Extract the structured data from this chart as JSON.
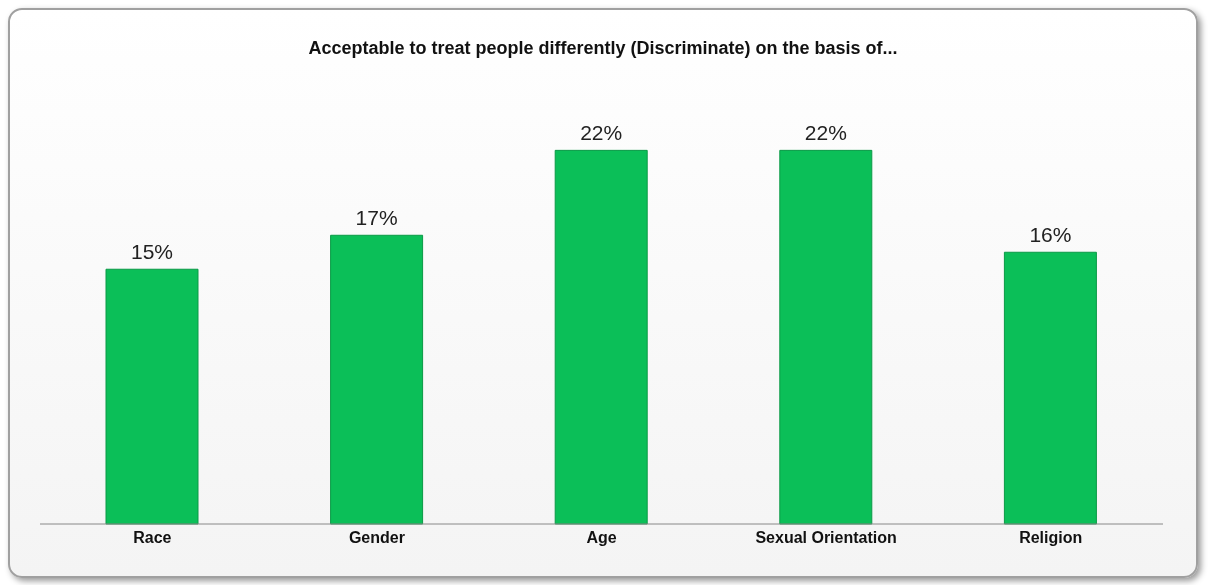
{
  "chart_data": {
    "type": "bar",
    "title": "Acceptable to treat people differently (Discriminate) on the basis of...",
    "categories": [
      "Race",
      "Gender",
      "Age",
      "Sexual Orientation",
      "Religion"
    ],
    "values": [
      15,
      17,
      22,
      22,
      16
    ],
    "value_labels": [
      "15%",
      "17%",
      "22%",
      "22%",
      "16%"
    ],
    "color": "#0bbf58",
    "grid": false,
    "legend": false
  }
}
